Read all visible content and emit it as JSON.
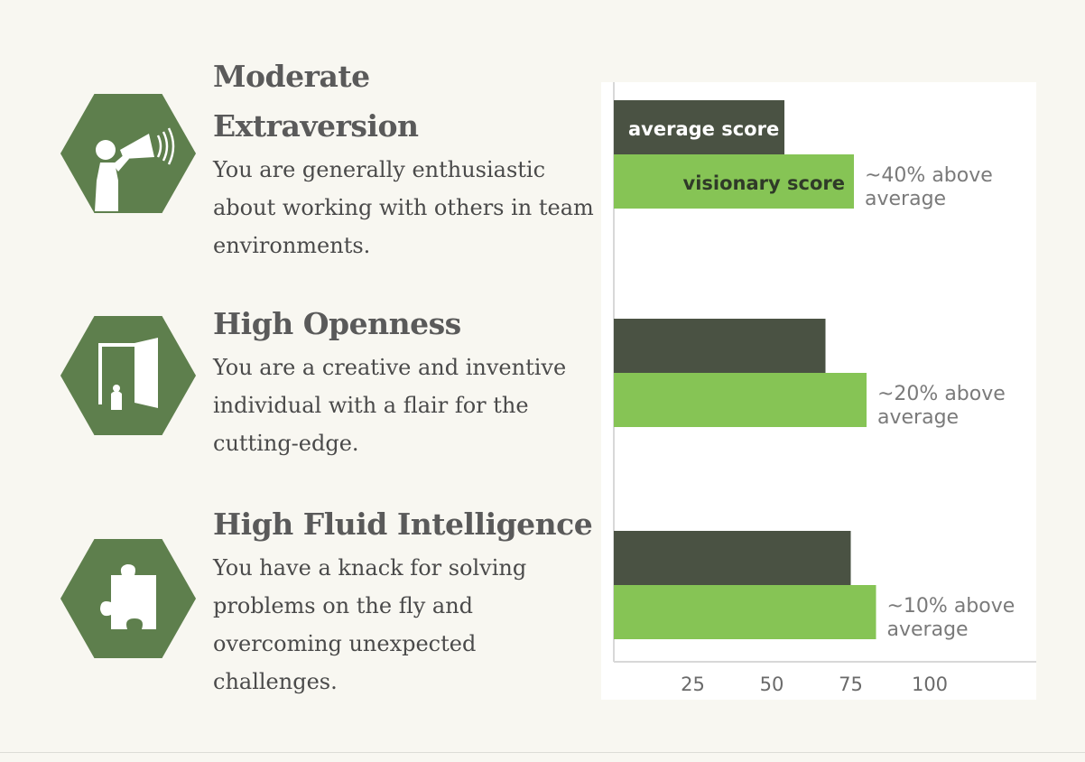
{
  "traits": [
    {
      "title_lines": [
        "Moderate",
        "Extraversion"
      ],
      "description_lines": [
        "You are generally enthusiastic",
        "about working with others in team",
        "environments."
      ],
      "icon": "megaphone-icon"
    },
    {
      "title_lines": [
        "High Openness"
      ],
      "description_lines": [
        "You are a creative and inventive",
        "individual with a flair for the",
        "cutting-edge."
      ],
      "icon": "door-icon"
    },
    {
      "title_lines": [
        "High Fluid Intelligence"
      ],
      "description_lines": [
        "You have a knack for solving",
        "problems on the fly and",
        "overcoming unexpected",
        "challenges."
      ],
      "icon": "puzzle-piece-icon"
    }
  ],
  "colors": {
    "background": "#f8f7f1",
    "icon_hex": "#5e7f4d",
    "average_bar": "#4a5243",
    "visionary_bar": "#86c455",
    "heading_text": "#5a5a5a",
    "note_text": "#7a7a7a"
  },
  "chart_data": {
    "type": "bar",
    "orientation": "horizontal",
    "categories": [
      "Moderate Extraversion",
      "High Openness",
      "High Fluid Intelligence"
    ],
    "series": [
      {
        "name": "average score",
        "values": [
          54,
          67,
          75
        ]
      },
      {
        "name": "visionary score",
        "values": [
          76,
          80,
          83
        ]
      }
    ],
    "annotations": [
      "~40% above average",
      "~20% above average",
      "~10% above average"
    ],
    "xticks": [
      25,
      50,
      75,
      100
    ],
    "xlim": [
      0,
      125
    ],
    "grid": false,
    "legend": "inline labels on first group"
  }
}
